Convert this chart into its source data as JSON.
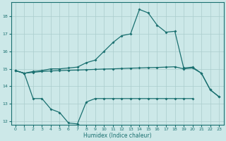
{
  "x": [
    0,
    1,
    2,
    3,
    4,
    5,
    6,
    7,
    8,
    9,
    10,
    11,
    12,
    13,
    14,
    15,
    16,
    17,
    18,
    19,
    20,
    21,
    22,
    23
  ],
  "line_top": [
    14.9,
    14.75,
    14.85,
    14.9,
    15.0,
    15.0,
    15.05,
    15.1,
    15.35,
    15.5,
    16.0,
    16.5,
    16.9,
    17.0,
    18.4,
    18.2,
    17.5,
    17.1,
    17.15,
    15.05,
    15.1,
    14.75,
    13.8,
    13.4
  ],
  "line_mid": [
    14.9,
    14.75,
    14.8,
    14.85,
    14.88,
    14.9,
    14.92,
    14.93,
    14.95,
    14.97,
    14.99,
    15.0,
    15.02,
    15.04,
    15.05,
    15.07,
    15.08,
    15.1,
    15.12,
    15.0,
    15.05,
    14.75,
    13.8,
    13.4
  ],
  "line_bot": [
    14.9,
    14.75,
    13.3,
    13.3,
    12.7,
    12.5,
    11.9,
    11.85,
    13.1,
    13.3,
    13.3,
    13.3,
    13.3,
    13.3,
    13.3,
    13.3,
    13.3,
    13.3,
    13.3,
    13.3,
    13.3,
    null,
    null,
    null
  ],
  "background_color": "#cce8e8",
  "line_color": "#1a7070",
  "grid_color": "#aacccc",
  "xlabel": "Humidex (Indice chaleur)",
  "ylim": [
    11.8,
    18.8
  ],
  "xlim": [
    -0.5,
    23.5
  ],
  "yticks": [
    12,
    13,
    14,
    15,
    16,
    17,
    18
  ],
  "xticks": [
    0,
    1,
    2,
    3,
    4,
    5,
    6,
    7,
    8,
    9,
    10,
    11,
    12,
    13,
    14,
    15,
    16,
    17,
    18,
    19,
    20,
    21,
    22,
    23
  ]
}
